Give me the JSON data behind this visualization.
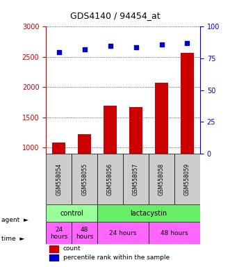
{
  "title": "GDS4140 / 94454_at",
  "samples": [
    "GSM558054",
    "GSM558055",
    "GSM558056",
    "GSM558057",
    "GSM558058",
    "GSM558059"
  ],
  "counts": [
    1080,
    1220,
    1690,
    1670,
    2070,
    2570
  ],
  "percentiles": [
    80,
    82,
    85,
    84,
    86,
    87
  ],
  "ylim_left": [
    900,
    3000
  ],
  "ylim_right": [
    0,
    100
  ],
  "yticks_left": [
    1000,
    1500,
    2000,
    2500,
    3000
  ],
  "yticks_right": [
    0,
    25,
    50,
    75,
    100
  ],
  "bar_color": "#cc0000",
  "dot_color": "#0000cc",
  "bg_color": "#ffffff",
  "agent_row": [
    {
      "label": "control",
      "span": [
        0,
        2
      ],
      "color": "#99ff99"
    },
    {
      "label": "lactacystin",
      "span": [
        2,
        6
      ],
      "color": "#66ee66"
    }
  ],
  "time_row": [
    {
      "label": "24\nhours",
      "span": [
        0,
        1
      ],
      "color": "#ff66ff"
    },
    {
      "label": "48\nhours",
      "span": [
        1,
        2
      ],
      "color": "#ff66ff"
    },
    {
      "label": "24 hours",
      "span": [
        2,
        4
      ],
      "color": "#ff66ff"
    },
    {
      "label": "48 hours",
      "span": [
        4,
        6
      ],
      "color": "#ff66ff"
    }
  ],
  "left_axis_color": "#cc0000",
  "right_axis_color": "#0000cc",
  "sample_bg_color": "#cccccc"
}
